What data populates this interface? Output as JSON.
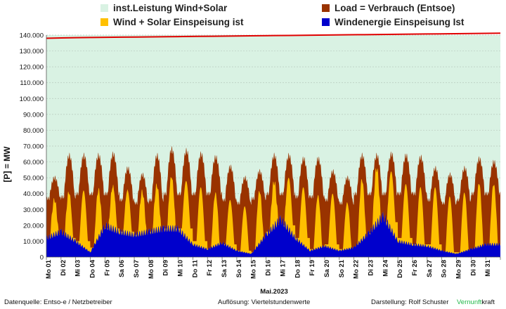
{
  "legend": {
    "items": [
      {
        "name": "inst.Leistung Wind+Solar",
        "color": "#d9f2e3"
      },
      {
        "name": "Load =  Verbrauch (Entsoe)",
        "color": "#993300"
      },
      {
        "name": "Wind + Solar Einspeisung ist",
        "color": "#ffc000"
      },
      {
        "name": "Windenergie Einspeisung Ist",
        "color": "#0000cc"
      }
    ]
  },
  "footer": {
    "source": "Datenquelle:  Entso-e  / Netzbetreiber",
    "resolution": "Auflösung: Viertelstundenwerte",
    "author": "Darstellung:  Rolf Schuster",
    "brand_green": "Vernunft",
    "brand_rest": "kraft"
  },
  "chart_data": {
    "type": "area",
    "title": "",
    "xlabel": "Mai.2023",
    "ylabel": "[P] = MW",
    "ylim": [
      0,
      140000
    ],
    "yticks": [
      "0",
      "10.000",
      "20.000",
      "30.000",
      "40.000",
      "50.000",
      "60.000",
      "70.000",
      "80.000",
      "90.000",
      "100.000",
      "110.000",
      "120.000",
      "130.000",
      "140.000"
    ],
    "grid": true,
    "legend_position": "top",
    "categories": [
      "Mo 01",
      "Di 02",
      "Mi 03",
      "Do 04",
      "Fr 05",
      "Sa 06",
      "So 07",
      "Mo 08",
      "Di 09",
      "Mi 10",
      "Do 11",
      "Fr 12",
      "Sa 13",
      "So 14",
      "Mo 15",
      "Di 16",
      "Mi 17",
      "Do 18",
      "Fr 19",
      "Sa 20",
      "So 21",
      "Mo 22",
      "Di 23",
      "Mi 24",
      "Do 25",
      "Fr 26",
      "Sa 27",
      "So 28",
      "Mo 29",
      "Di 30",
      "Mi 31"
    ],
    "installed_capacity": [
      138000,
      138200,
      138400,
      138500,
      138600,
      138700,
      138800,
      138900,
      139000,
      139100,
      139200,
      139300,
      139400,
      139500,
      139600,
      139700,
      139800,
      139900,
      140000,
      140100,
      140200,
      140300,
      140400,
      140500,
      140600,
      140700,
      140800,
      140900,
      141000,
      141100,
      141200
    ],
    "series": [
      {
        "name": "Load =  Verbrauch (Entsoe)",
        "color": "#993300",
        "min": [
          37000,
          38000,
          40000,
          40000,
          40000,
          36000,
          34000,
          36000,
          40000,
          40000,
          40000,
          40000,
          36000,
          34000,
          37000,
          40000,
          40000,
          38000,
          38000,
          36000,
          34000,
          40000,
          40000,
          40000,
          40000,
          40000,
          36000,
          34000,
          36000,
          40000,
          40000
        ],
        "max": [
          50000,
          64000,
          64000,
          64000,
          65000,
          56000,
          52000,
          64000,
          68000,
          67000,
          65000,
          63000,
          57000,
          50000,
          54000,
          64000,
          64000,
          62000,
          62000,
          54000,
          50000,
          64000,
          64000,
          65000,
          64000,
          63000,
          56000,
          52000,
          56000,
          62000,
          60000
        ]
      },
      {
        "name": "Wind + Solar Einspeisung ist",
        "color": "#ffc000",
        "min": [
          8000,
          12000,
          10000,
          6000,
          18000,
          16000,
          14000,
          16000,
          18000,
          18000,
          10000,
          5000,
          8000,
          4000,
          3000,
          16000,
          20000,
          12000,
          5000,
          8000,
          5000,
          6000,
          15000,
          22000,
          12000,
          8000,
          8000,
          3000,
          3000,
          4000,
          6000
        ],
        "max": [
          30000,
          40000,
          42000,
          36000,
          44000,
          42000,
          40000,
          44000,
          50000,
          48000,
          44000,
          38000,
          36000,
          32000,
          36000,
          44000,
          50000,
          44000,
          38000,
          40000,
          34000,
          44000,
          50000,
          54000,
          46000,
          44000,
          44000,
          38000,
          40000,
          44000,
          44000
        ]
      },
      {
        "name": "Windenergie Einspeisung Ist",
        "color": "#0000cc",
        "values": [
          12000,
          16000,
          10000,
          3000,
          20000,
          16000,
          14000,
          16000,
          18000,
          18000,
          8000,
          5000,
          9000,
          4000,
          2000,
          14000,
          24000,
          12000,
          4000,
          7000,
          4000,
          6000,
          15000,
          26000,
          10000,
          8000,
          7000,
          4000,
          2000,
          5000,
          8000
        ]
      }
    ]
  }
}
